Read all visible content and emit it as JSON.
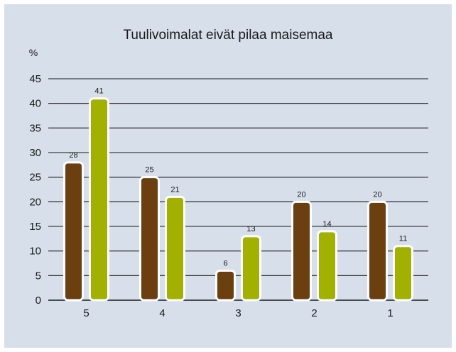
{
  "chart_data": {
    "type": "bar",
    "title": "Tuulivoimalat eivät pilaa maisemaa",
    "ylabel": "%",
    "xlabel": "",
    "ylim": [
      0,
      45
    ],
    "yticks": [
      0,
      5,
      10,
      15,
      20,
      25,
      30,
      35,
      40,
      45
    ],
    "grid": true,
    "legend": "none",
    "categories": [
      "5",
      "4",
      "3",
      "2",
      "1"
    ],
    "series": [
      {
        "values": [
          28,
          25,
          6,
          20,
          20
        ],
        "color": "#6b3f10"
      },
      {
        "values": [
          41,
          21,
          13,
          14,
          11
        ],
        "color": "#a2b000"
      }
    ],
    "background_color": "#d6dfea"
  }
}
